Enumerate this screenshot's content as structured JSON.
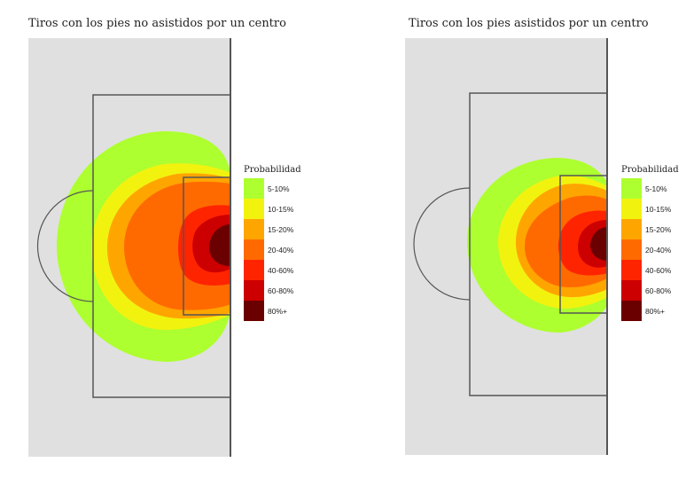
{
  "chart_data": [
    {
      "type": "heatmap",
      "title": "Tiros con los pies no asistidos por un centro",
      "legend": {
        "title": "Probabilidad",
        "placement": "right",
        "bins": [
          {
            "label": "5-10%",
            "color": "#adff2f"
          },
          {
            "label": "10-15%",
            "color": "#f2f20f"
          },
          {
            "label": "15-20%",
            "color": "#ffa500"
          },
          {
            "label": "20-40%",
            "color": "#ff6a00"
          },
          {
            "label": "40-60%",
            "color": "#ff2400"
          },
          {
            "label": "60-80%",
            "color": "#cc0000"
          },
          {
            "label": "80%+",
            "color": "#6b0000"
          }
        ]
      }
    },
    {
      "type": "heatmap",
      "title": "Tiros con los pies asistidos por un centro",
      "legend": {
        "title": "Probabilidad",
        "placement": "right",
        "bins": [
          {
            "label": "5-10%",
            "color": "#adff2f"
          },
          {
            "label": "10-15%",
            "color": "#f2f20f"
          },
          {
            "label": "15-20%",
            "color": "#ffa500"
          },
          {
            "label": "20-40%",
            "color": "#ff6a00"
          },
          {
            "label": "40-60%",
            "color": "#ff2400"
          },
          {
            "label": "60-80%",
            "color": "#cc0000"
          },
          {
            "label": "80%+",
            "color": "#6b0000"
          }
        ]
      }
    }
  ],
  "pitch_color": "#e0e0e0",
  "line_color": "#555555"
}
